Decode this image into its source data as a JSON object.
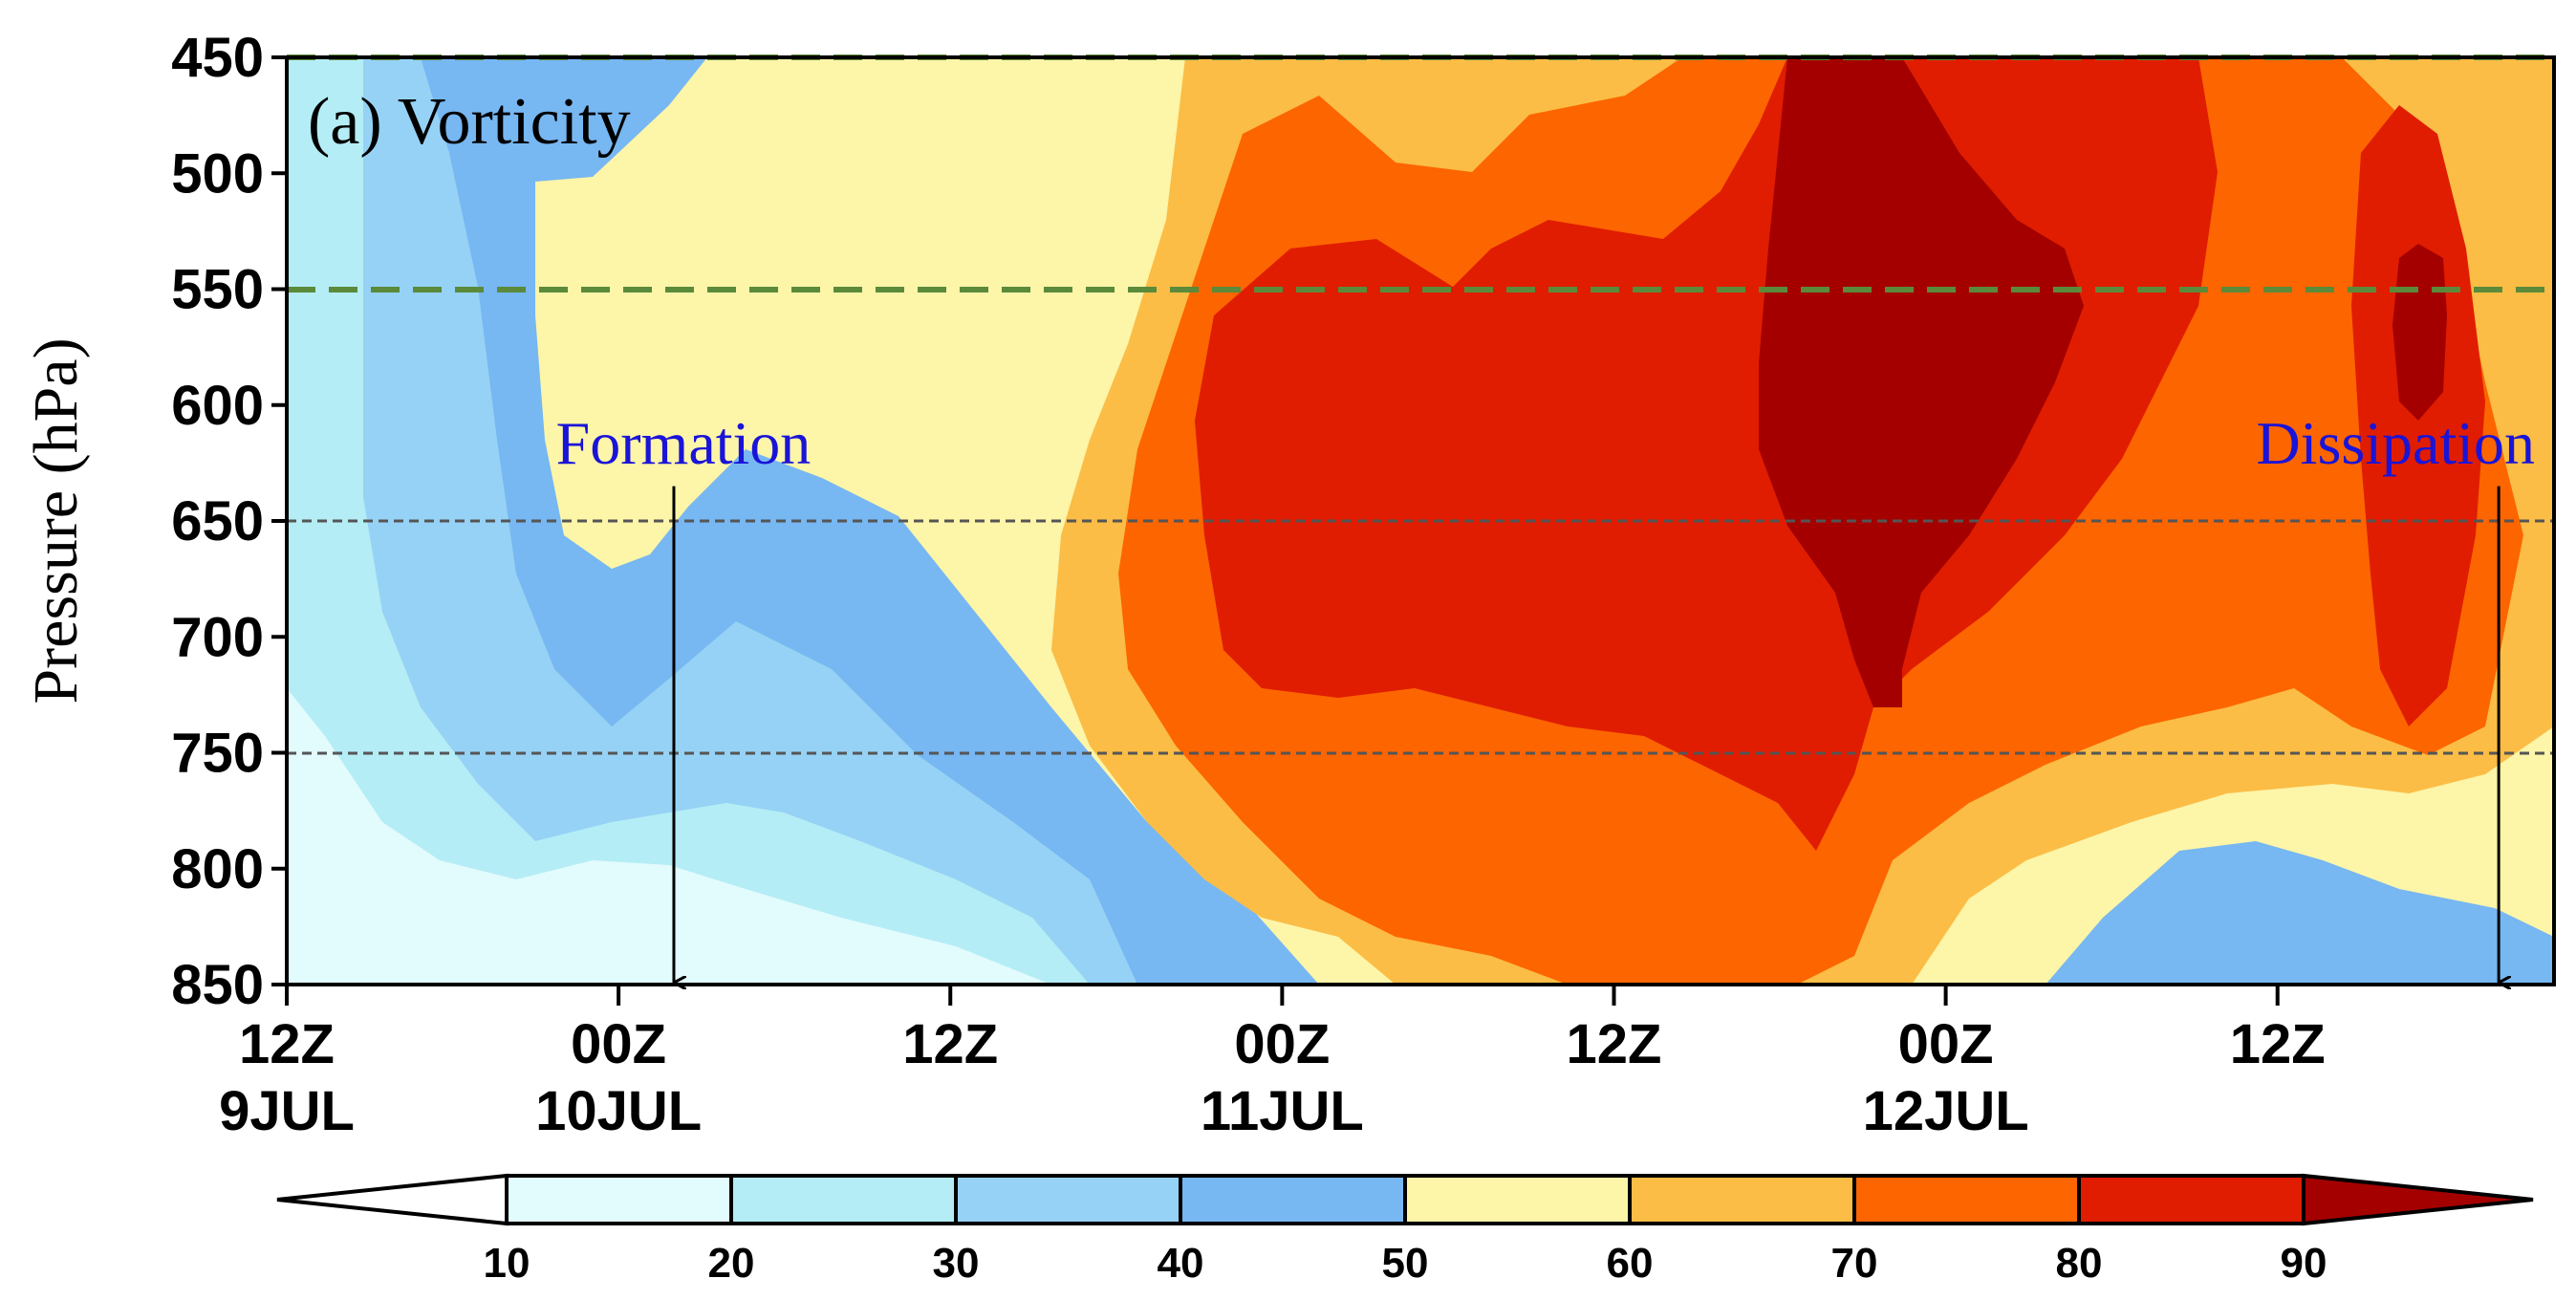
{
  "chart_data": {
    "type": "heatmap",
    "title": "(a) Vorticity",
    "xlabel": "",
    "ylabel": "Pressure (hPa)",
    "y_ticks": [
      "450",
      "500",
      "550",
      "600",
      "650",
      "700",
      "750",
      "800",
      "850"
    ],
    "ylim": [
      850,
      450
    ],
    "x_ticks": [
      {
        "line1": "12Z",
        "line2": "9JUL"
      },
      {
        "line1": "00Z",
        "line2": "10JUL"
      },
      {
        "line1": "12Z",
        "line2": ""
      },
      {
        "line1": "00Z",
        "line2": "11JUL"
      },
      {
        "line1": "12Z",
        "line2": ""
      },
      {
        "line1": "00Z",
        "line2": "12JUL"
      },
      {
        "line1": "12Z",
        "line2": ""
      }
    ],
    "x_hours_since_start": [
      0,
      12,
      24,
      36,
      48,
      60,
      72
    ],
    "xlim": [
      0,
      82
    ],
    "reference_lines_hPa": [
      {
        "pressure": 450,
        "style": "green-dashed"
      },
      {
        "pressure": 550,
        "style": "green-dashed"
      },
      {
        "pressure": 650,
        "style": "gray-dashed"
      },
      {
        "pressure": 750,
        "style": "gray-dashed"
      }
    ],
    "annotations": [
      {
        "text": "Formation",
        "hour": 14,
        "arrow_from_hPa": 635,
        "arrow_to_hPa": 850
      },
      {
        "text": "Dissipation",
        "hour": 80,
        "arrow_from_hPa": 635,
        "arrow_to_hPa": 850
      }
    ],
    "colorbar": {
      "levels": [
        "10",
        "20",
        "30",
        "40",
        "50",
        "60",
        "70",
        "80",
        "90"
      ],
      "colors": [
        "#ffffff",
        "#e2fbfd",
        "#b4edf5",
        "#96d2f5",
        "#77b7f2",
        "#fdf5a8",
        "#fbbd45",
        "#fd6500",
        "#e01d00",
        "#a40000"
      ],
      "extend": "both"
    },
    "regions": [
      {
        "level": 1,
        "description": "10-20 band, lower-left corner at 00Z 10JUL near 850 hPa"
      },
      {
        "level": 2,
        "description": "20-30 band along left edge and near surface"
      },
      {
        "level": 3,
        "description": "30-40 band"
      },
      {
        "level": 4,
        "description": "40-50 band, upper left and lower right"
      },
      {
        "level": 5,
        "description": "50-60 yellow band around formation time"
      },
      {
        "level": 6,
        "description": "60-70 band"
      },
      {
        "level": 7,
        "description": "70-80 band"
      },
      {
        "level": 8,
        "description": "80-90 core 00Z 11JUL to 00Z 12JUL, 550-750 hPa"
      },
      {
        "level": 9,
        "description": ">90 core near 00Z 12JUL, 450-730 hPa"
      }
    ]
  }
}
